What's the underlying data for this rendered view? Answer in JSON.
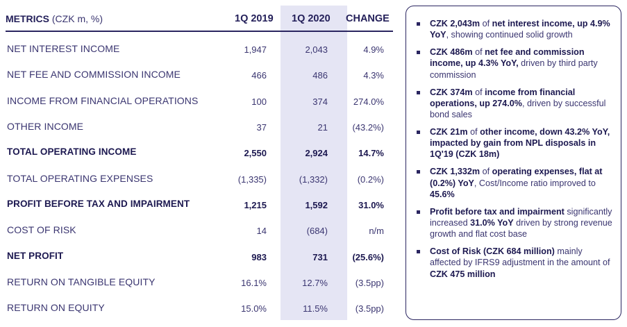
{
  "table": {
    "header": {
      "metric": "METRICS",
      "unit": "(CZK m, %)",
      "col1": "1Q 2019",
      "col2": "1Q 2020",
      "col3": "CHANGE"
    },
    "rows": [
      {
        "label": "NET INTEREST INCOME",
        "q2019": "1,947",
        "q2020": "2,043",
        "change": "4.9%"
      },
      {
        "label": "NET FEE AND COMMISSION INCOME",
        "q2019": "466",
        "q2020": "486",
        "change": "4.3%"
      },
      {
        "label": "INCOME FROM FINANCIAL OPERATIONS",
        "q2019": "100",
        "q2020": "374",
        "change": "274.0%"
      },
      {
        "label": "OTHER INCOME",
        "q2019": "37",
        "q2020": "21",
        "change": "(43.2%)"
      },
      {
        "label": "TOTAL OPERATING INCOME",
        "q2019": "2,550",
        "q2020": "2,924",
        "change": "14.7%"
      },
      {
        "label": "TOTAL OPERATING EXPENSES",
        "q2019": "(1,335)",
        "q2020": "(1,332)",
        "change": "(0.2%)"
      },
      {
        "label": "PROFIT BEFORE TAX AND IMPAIRMENT",
        "q2019": "1,215",
        "q2020": "1,592",
        "change": "31.0%"
      },
      {
        "label": "COST OF RISK",
        "q2019": "14",
        "q2020": "(684)",
        "change": "n/m"
      },
      {
        "label": "NET PROFIT",
        "q2019": "983",
        "q2020": "731",
        "change": "(25.6%)"
      },
      {
        "label": "RETURN ON TANGIBLE EQUITY",
        "q2019": "16.1%",
        "q2020": "12.7%",
        "change": "(3.5pp)"
      },
      {
        "label": "RETURN ON EQUITY",
        "q2019": "15.0%",
        "q2020": "11.5%",
        "change": "(3.5pp)"
      }
    ]
  },
  "bullets": [
    {
      "b1": "CZK 2,043m",
      "t1": " of ",
      "b2": "net interest income, up 4.9% YoY",
      "t2": ", showing continued solid growth"
    },
    {
      "b1": "CZK 486m",
      "t1": " of ",
      "b2": "net fee and commission income, up 4.3% YoY,",
      "t2": " driven by third party commission"
    },
    {
      "b1": "CZK 374m",
      "t1": " of ",
      "b2": "income from financial operations, up 274.0%",
      "t2": ", driven by successful bond sales"
    },
    {
      "b1": "CZK 21m",
      "t1": " of ",
      "b2": "other income, down 43.2% YoY, impacted by gain from NPL disposals in 1Q'19  (CZK 18m)",
      "t2": ""
    },
    {
      "b1": "CZK 1,332m",
      "t1": " of ",
      "b2": "operating expenses,  flat at (0.2%) YoY",
      "t2": ", Cost/Income ratio improved to ",
      "b3": "45.6%"
    },
    {
      "b1": "Profit before tax and impairment",
      "t1": " significantly increased ",
      "b2": "31.0% YoY",
      "t2": " driven by strong revenue growth and flat cost base"
    },
    {
      "b1": "Cost of Risk (CZK 684 million)",
      "t1": " mainly affected by IFRS9 adjustment in the amount of ",
      "b2": "CZK 475 million",
      "t2": ""
    }
  ]
}
